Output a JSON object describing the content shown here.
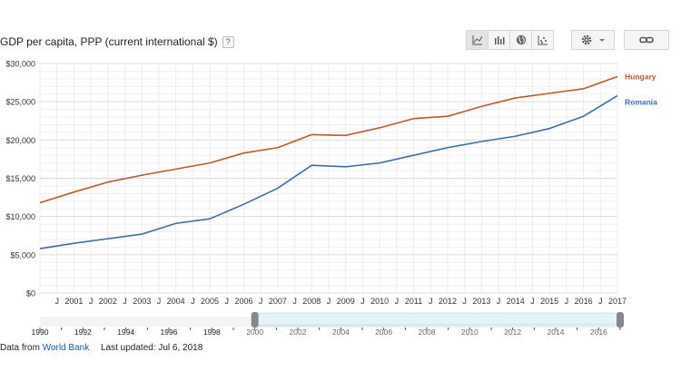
{
  "title": "GDP per capita, PPP (current international $)",
  "help_label": "?",
  "footer": {
    "source_prefix": "Data from",
    "source_link": "World Bank",
    "updated": "Last updated: Jul 6, 2018"
  },
  "toolbar": {
    "buttons": [
      {
        "name": "line-chart-icon",
        "active": true
      },
      {
        "name": "bar-chart-icon",
        "active": false
      },
      {
        "name": "globe-icon",
        "active": false
      },
      {
        "name": "scatter-chart-icon",
        "active": false
      }
    ]
  },
  "colors": {
    "hungary": "#c2592b",
    "romania": "#3a6db6",
    "grid": "#e6e6e6"
  },
  "chart_data": {
    "type": "line",
    "title": "GDP per capita, PPP (current international $)",
    "xlabel": "",
    "ylabel": "",
    "ylim": [
      0,
      30000
    ],
    "y_ticks": [
      0,
      5000,
      10000,
      15000,
      20000,
      25000,
      30000
    ],
    "y_tick_labels": [
      "$0",
      "$5,000",
      "$10,000",
      "$15,000",
      "$20,000",
      "$25,000",
      "$30,000"
    ],
    "x": [
      2000,
      2001,
      2002,
      2003,
      2004,
      2005,
      2006,
      2007,
      2008,
      2009,
      2010,
      2011,
      2012,
      2013,
      2014,
      2015,
      2016,
      2017
    ],
    "x_tick_labels": [
      "2001",
      "2002",
      "2003",
      "2004",
      "2005",
      "2006",
      "2007",
      "2008",
      "2009",
      "2010",
      "2011",
      "2012",
      "2013",
      "2014",
      "2015",
      "2016",
      "2017"
    ],
    "x_minor_label": "J",
    "legend_position": "right",
    "grid": true,
    "series": [
      {
        "name": "Hungary",
        "values": [
          11800,
          13200,
          14500,
          15400,
          16200,
          17000,
          18300,
          19000,
          20700,
          20600,
          21600,
          22800,
          23100,
          24400,
          25500,
          26100,
          26700,
          28300
        ]
      },
      {
        "name": "Romania",
        "values": [
          5800,
          6500,
          7100,
          7700,
          9100,
          9700,
          11600,
          13700,
          16700,
          16500,
          17000,
          18000,
          19000,
          19800,
          20500,
          21500,
          23100,
          25800
        ]
      }
    ],
    "range_selector": {
      "labels": [
        "1990",
        "1992",
        "1994",
        "1996",
        "1998",
        "2000",
        "2002",
        "2004",
        "2006",
        "2008",
        "2010",
        "2012",
        "2014",
        "2016"
      ],
      "selected": [
        2000,
        2017
      ]
    }
  }
}
